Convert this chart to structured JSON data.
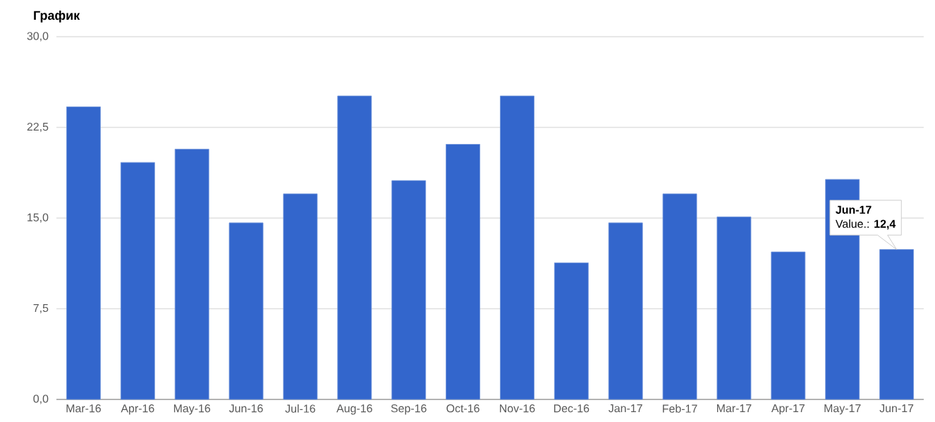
{
  "chart_data": {
    "type": "bar",
    "title": "График",
    "categories": [
      "Mar-16",
      "Apr-16",
      "May-16",
      "Jun-16",
      "Jul-16",
      "Aug-16",
      "Sep-16",
      "Oct-16",
      "Nov-16",
      "Dec-16",
      "Jan-17",
      "Feb-17",
      "Mar-17",
      "Apr-17",
      "May-17",
      "Jun-17"
    ],
    "values": [
      24.2,
      19.6,
      20.7,
      14.6,
      17.0,
      25.1,
      18.1,
      21.1,
      25.1,
      11.3,
      14.6,
      17.0,
      15.1,
      12.2,
      18.2,
      12.4
    ],
    "color": "#3366cc",
    "ylim": [
      0,
      30
    ],
    "yticks": [
      {
        "value": 0,
        "label": "0,0"
      },
      {
        "value": 7.5,
        "label": "7,5"
      },
      {
        "value": 15,
        "label": "15,0"
      },
      {
        "value": 22.5,
        "label": "22,5"
      },
      {
        "value": 30,
        "label": "30,0"
      }
    ],
    "grid": "y",
    "annotations": [
      "Jun-17",
      "Value.: **12,4**"
    ]
  }
}
